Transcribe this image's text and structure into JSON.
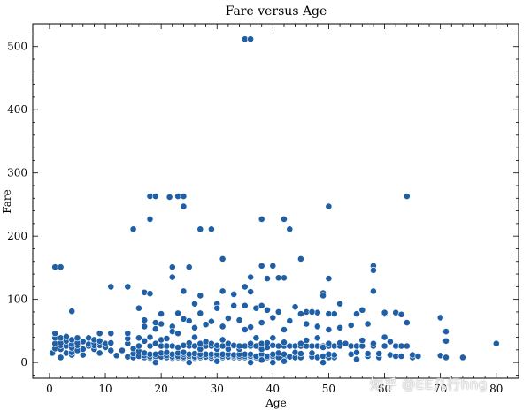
{
  "chart_data": {
    "type": "scatter",
    "title": "Fare versus Age",
    "xlabel": "Age",
    "ylabel": "Fare",
    "xlim": [
      -3,
      84
    ],
    "ylim": [
      -25,
      536
    ],
    "xticks": [
      0,
      10,
      20,
      30,
      40,
      50,
      60,
      70,
      80
    ],
    "yticks": [
      0,
      100,
      200,
      300,
      400,
      500
    ],
    "grid": false,
    "legend": "none",
    "marker_color": "#1f5fa6",
    "marker_edge": "#ffffff",
    "points": [
      [
        35,
        512
      ],
      [
        36,
        512
      ],
      [
        18,
        263
      ],
      [
        19,
        263
      ],
      [
        21.5,
        262
      ],
      [
        23,
        263
      ],
      [
        24,
        263
      ],
      [
        24,
        247
      ],
      [
        18,
        227
      ],
      [
        38,
        227
      ],
      [
        42,
        227
      ],
      [
        43,
        211
      ],
      [
        15,
        211
      ],
      [
        27,
        211
      ],
      [
        29,
        211
      ],
      [
        50,
        247
      ],
      [
        64,
        263
      ],
      [
        1,
        151
      ],
      [
        2,
        151
      ],
      [
        22,
        151
      ],
      [
        25,
        151
      ],
      [
        36,
        135
      ],
      [
        38,
        153
      ],
      [
        40,
        153
      ],
      [
        31,
        164
      ],
      [
        45,
        164
      ],
      [
        41,
        134
      ],
      [
        42,
        134
      ],
      [
        50,
        133
      ],
      [
        58,
        153
      ],
      [
        58,
        146
      ],
      [
        39,
        133
      ],
      [
        35,
        120
      ],
      [
        22,
        135
      ],
      [
        11,
        120
      ],
      [
        14,
        120
      ],
      [
        17,
        111
      ],
      [
        18,
        109
      ],
      [
        24,
        113
      ],
      [
        31,
        113
      ],
      [
        36,
        112
      ],
      [
        33,
        108
      ],
      [
        49,
        110
      ],
      [
        49,
        106
      ],
      [
        58,
        113
      ],
      [
        27,
        106
      ],
      [
        4,
        81
      ],
      [
        16,
        86
      ],
      [
        20,
        77
      ],
      [
        23,
        78
      ],
      [
        26,
        93
      ],
      [
        27,
        78
      ],
      [
        30,
        93
      ],
      [
        30,
        86
      ],
      [
        33,
        90
      ],
      [
        35,
        90
      ],
      [
        37,
        86
      ],
      [
        38,
        90
      ],
      [
        39,
        83
      ],
      [
        41,
        80
      ],
      [
        44,
        88
      ],
      [
        46,
        80
      ],
      [
        48,
        79
      ],
      [
        50,
        77
      ],
      [
        51,
        77
      ],
      [
        52,
        93
      ],
      [
        55,
        77
      ],
      [
        56,
        83
      ],
      [
        60,
        77
      ],
      [
        60,
        79
      ],
      [
        62,
        79
      ],
      [
        63,
        76
      ],
      [
        64,
        63
      ],
      [
        70,
        71
      ],
      [
        71,
        49
      ],
      [
        47,
        80
      ],
      [
        45,
        77
      ],
      [
        20,
        61
      ],
      [
        22,
        57
      ],
      [
        24,
        69
      ],
      [
        25,
        66
      ],
      [
        28,
        60
      ],
      [
        31,
        57
      ],
      [
        32,
        70
      ],
      [
        34,
        67
      ],
      [
        36,
        56
      ],
      [
        38,
        63
      ],
      [
        40,
        71
      ],
      [
        42,
        52
      ],
      [
        43,
        66
      ],
      [
        46,
        61
      ],
      [
        48,
        57
      ],
      [
        50,
        52
      ],
      [
        52,
        55
      ],
      [
        54,
        59
      ],
      [
        57,
        61
      ],
      [
        17,
        67
      ],
      [
        19,
        63
      ],
      [
        26,
        55
      ],
      [
        29,
        65
      ],
      [
        0.5,
        15
      ],
      [
        1,
        22
      ],
      [
        1,
        30
      ],
      [
        1,
        39
      ],
      [
        1,
        46
      ],
      [
        2,
        8
      ],
      [
        2,
        21
      ],
      [
        2,
        27
      ],
      [
        2,
        31
      ],
      [
        2,
        39
      ],
      [
        3,
        15
      ],
      [
        3,
        26
      ],
      [
        3,
        34
      ],
      [
        3,
        41
      ],
      [
        4,
        12
      ],
      [
        4,
        16
      ],
      [
        4,
        23
      ],
      [
        4,
        29
      ],
      [
        4,
        36
      ],
      [
        5,
        19
      ],
      [
        5,
        27
      ],
      [
        5,
        31
      ],
      [
        5,
        39
      ],
      [
        6,
        12
      ],
      [
        6,
        21
      ],
      [
        6,
        33
      ],
      [
        7,
        26
      ],
      [
        7,
        29
      ],
      [
        7,
        39
      ],
      [
        8,
        21
      ],
      [
        8,
        27
      ],
      [
        8,
        31
      ],
      [
        8,
        36
      ],
      [
        9,
        15
      ],
      [
        9,
        27
      ],
      [
        9,
        31
      ],
      [
        9,
        34
      ],
      [
        9,
        46
      ],
      [
        10,
        24
      ],
      [
        10,
        30
      ],
      [
        11,
        19
      ],
      [
        11,
        31
      ],
      [
        11,
        46
      ],
      [
        12,
        11
      ],
      [
        13,
        19
      ],
      [
        14,
        9
      ],
      [
        14,
        30
      ],
      [
        14,
        38
      ],
      [
        14,
        46
      ],
      [
        15,
        8
      ],
      [
        15,
        14
      ],
      [
        15,
        22
      ],
      [
        16,
        10
      ],
      [
        16,
        18
      ],
      [
        16,
        26
      ],
      [
        16,
        39
      ],
      [
        17,
        8
      ],
      [
        17,
        11
      ],
      [
        17,
        15
      ],
      [
        17,
        34
      ],
      [
        17,
        57
      ],
      [
        18,
        7
      ],
      [
        18,
        9
      ],
      [
        18,
        13
      ],
      [
        18,
        26
      ],
      [
        18,
        40
      ],
      [
        19,
        8
      ],
      [
        19,
        10
      ],
      [
        19,
        13
      ],
      [
        19,
        30
      ],
      [
        19,
        53
      ],
      [
        20,
        8
      ],
      [
        20,
        9
      ],
      [
        20,
        15
      ],
      [
        20,
        26
      ],
      [
        20,
        36
      ],
      [
        21,
        8
      ],
      [
        21,
        11
      ],
      [
        21,
        16
      ],
      [
        21,
        26
      ],
      [
        21,
        38
      ],
      [
        22,
        7
      ],
      [
        22,
        9
      ],
      [
        22,
        13
      ],
      [
        22,
        26
      ],
      [
        22,
        49
      ],
      [
        23,
        8
      ],
      [
        23,
        10
      ],
      [
        23,
        15
      ],
      [
        23,
        24
      ],
      [
        23,
        46
      ],
      [
        24,
        7
      ],
      [
        24,
        9
      ],
      [
        24,
        13
      ],
      [
        24,
        16
      ],
      [
        24,
        27
      ],
      [
        25,
        8
      ],
      [
        25,
        10
      ],
      [
        25,
        13
      ],
      [
        25,
        26
      ],
      [
        25,
        31
      ],
      [
        26,
        7
      ],
      [
        26,
        9
      ],
      [
        26,
        14
      ],
      [
        26,
        26
      ],
      [
        26,
        40
      ],
      [
        27,
        8
      ],
      [
        27,
        10
      ],
      [
        27,
        13
      ],
      [
        27,
        21
      ],
      [
        27,
        30
      ],
      [
        28,
        8
      ],
      [
        28,
        9
      ],
      [
        28,
        13
      ],
      [
        28,
        26
      ],
      [
        28,
        33
      ],
      [
        29,
        7
      ],
      [
        29,
        10
      ],
      [
        29,
        13
      ],
      [
        29,
        26
      ],
      [
        29,
        30
      ],
      [
        30,
        8
      ],
      [
        30,
        10
      ],
      [
        30,
        13
      ],
      [
        30,
        21
      ],
      [
        30,
        27
      ],
      [
        31,
        8
      ],
      [
        31,
        10
      ],
      [
        31,
        13
      ],
      [
        31,
        26
      ],
      [
        31,
        36
      ],
      [
        32,
        8
      ],
      [
        32,
        9
      ],
      [
        32,
        13
      ],
      [
        32,
        21
      ],
      [
        32,
        30
      ],
      [
        33,
        8
      ],
      [
        33,
        10
      ],
      [
        33,
        12
      ],
      [
        33,
        26
      ],
      [
        33,
        27
      ],
      [
        34,
        8
      ],
      [
        34,
        10
      ],
      [
        34,
        13
      ],
      [
        34,
        21
      ],
      [
        34,
        26
      ],
      [
        35,
        8
      ],
      [
        35,
        10
      ],
      [
        35,
        13
      ],
      [
        35,
        26
      ],
      [
        35,
        52
      ],
      [
        36,
        8
      ],
      [
        36,
        10
      ],
      [
        36,
        13
      ],
      [
        36,
        26
      ],
      [
        36,
        30
      ],
      [
        37,
        8
      ],
      [
        37,
        10
      ],
      [
        37,
        26
      ],
      [
        37,
        39
      ],
      [
        38,
        8
      ],
      [
        38,
        13
      ],
      [
        38,
        21
      ],
      [
        38,
        30
      ],
      [
        39,
        8
      ],
      [
        39,
        10
      ],
      [
        39,
        24
      ],
      [
        39,
        31
      ],
      [
        40,
        8
      ],
      [
        40,
        10
      ],
      [
        40,
        13
      ],
      [
        40,
        27
      ],
      [
        40,
        39
      ],
      [
        41,
        8
      ],
      [
        41,
        15
      ],
      [
        41,
        26
      ],
      [
        42,
        8
      ],
      [
        42,
        13
      ],
      [
        42,
        26
      ],
      [
        42,
        32
      ],
      [
        43,
        9
      ],
      [
        43,
        26
      ],
      [
        44,
        8
      ],
      [
        44,
        16
      ],
      [
        44,
        26
      ],
      [
        45,
        8
      ],
      [
        45,
        14
      ],
      [
        45,
        26
      ],
      [
        45,
        30
      ],
      [
        46,
        26
      ],
      [
        46,
        35
      ],
      [
        47,
        9
      ],
      [
        47,
        15
      ],
      [
        47,
        26
      ],
      [
        48,
        8
      ],
      [
        48,
        26
      ],
      [
        48,
        39
      ],
      [
        49,
        10
      ],
      [
        49,
        26
      ],
      [
        49,
        24
      ],
      [
        50,
        8
      ],
      [
        50,
        13
      ],
      [
        50,
        26
      ],
      [
        50,
        30
      ],
      [
        51,
        8
      ],
      [
        51,
        26
      ],
      [
        51,
        12
      ],
      [
        52,
        26
      ],
      [
        52,
        31
      ],
      [
        53,
        30
      ],
      [
        54,
        13
      ],
      [
        54,
        26
      ],
      [
        55,
        16
      ],
      [
        55,
        26
      ],
      [
        56,
        26
      ],
      [
        56,
        35
      ],
      [
        57,
        10
      ],
      [
        57,
        14
      ],
      [
        58,
        26
      ],
      [
        58,
        30
      ],
      [
        59,
        8
      ],
      [
        59,
        14
      ],
      [
        60,
        26
      ],
      [
        60,
        40
      ],
      [
        61,
        12
      ],
      [
        61,
        33
      ],
      [
        62,
        10
      ],
      [
        62,
        26
      ],
      [
        63,
        10
      ],
      [
        63,
        26
      ],
      [
        64,
        26
      ],
      [
        65,
        8
      ],
      [
        65,
        12
      ],
      [
        66,
        10
      ],
      [
        70,
        11
      ],
      [
        71,
        8
      ],
      [
        74,
        8
      ],
      [
        80,
        30
      ],
      [
        71,
        34
      ],
      [
        36,
        0
      ],
      [
        40,
        0
      ],
      [
        38,
        4
      ],
      [
        25,
        0
      ],
      [
        42,
        2
      ],
      [
        30,
        2
      ],
      [
        49,
        0
      ],
      [
        19,
        0
      ],
      [
        55,
        5
      ]
    ]
  },
  "watermark": "知乎 @EE几行hng"
}
